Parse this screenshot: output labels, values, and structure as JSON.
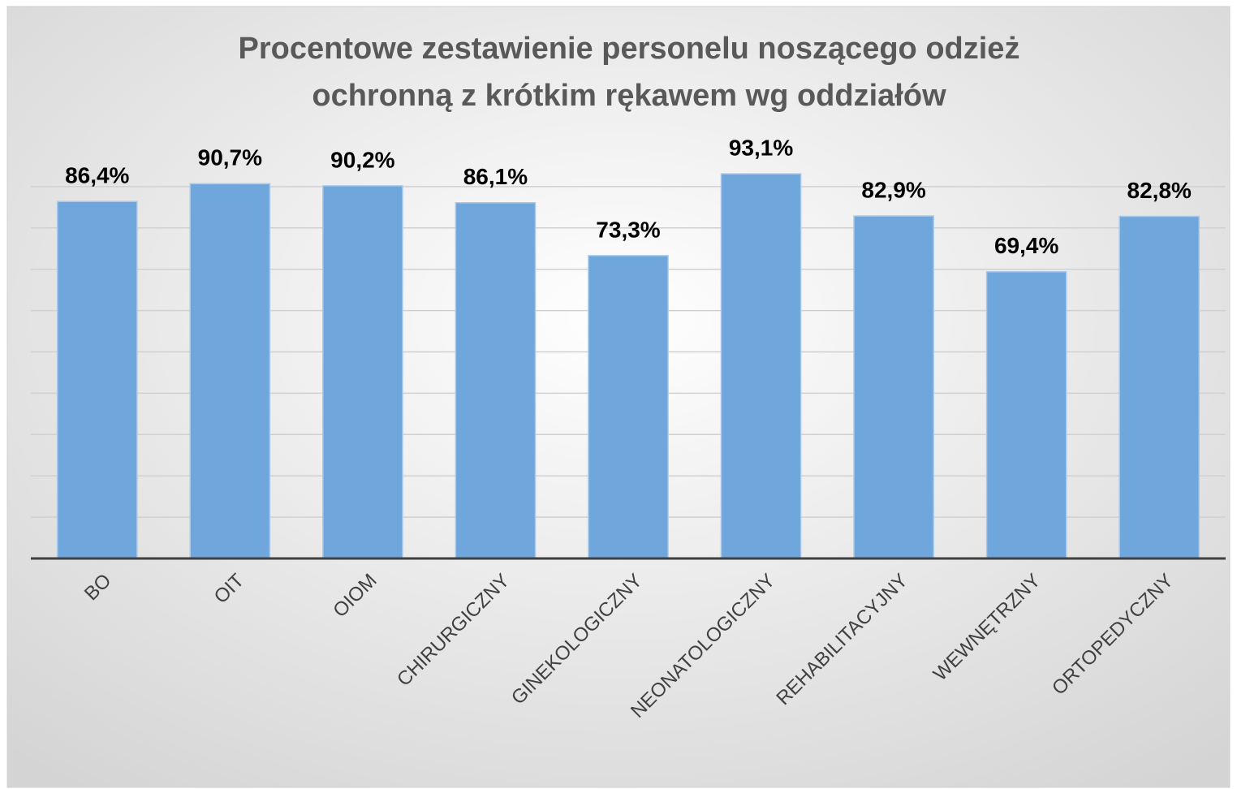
{
  "chart_data": {
    "type": "bar",
    "title": [
      "Procentowe zestawienie personelu noszącego odzież",
      "ochronną z krótkim rękawem wg oddziałów"
    ],
    "categories": [
      "BO",
      "OIT",
      "OIOM",
      "CHIRURGICZNY",
      "GINEKOLOGICZNY",
      "NEONATOLOGICZNY",
      "REHABILITACYJNY",
      "WEWNĘTRZNY",
      "ORTOPEDYCZNY"
    ],
    "values": [
      86.4,
      90.7,
      90.2,
      86.1,
      73.3,
      93.1,
      82.9,
      69.4,
      82.8
    ],
    "value_labels": [
      "86,4%",
      "90,7%",
      "90,2%",
      "86,1%",
      "73,3%",
      "93,1%",
      "82,9%",
      "69,4%",
      "82,8%"
    ],
    "color": "#6fa6db",
    "ylim": [
      0,
      100
    ],
    "yticks": [
      0,
      10,
      20,
      30,
      40,
      50,
      60,
      70,
      80,
      90
    ],
    "grid": true
  }
}
